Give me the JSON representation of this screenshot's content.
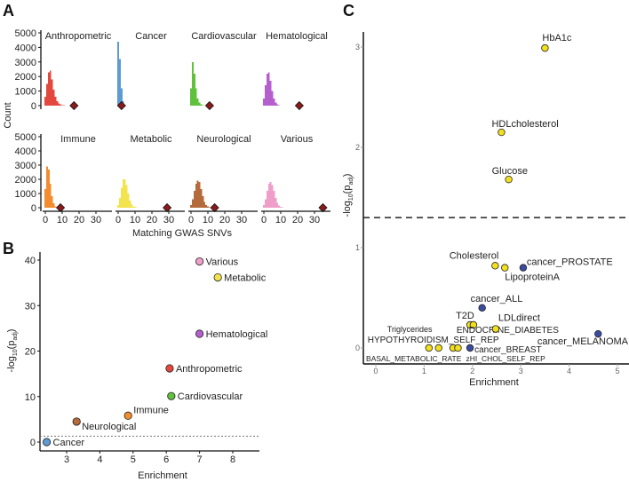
{
  "panel_labels": {
    "a": "A",
    "b": "B",
    "c": "C"
  },
  "colors": {
    "Anthropometric": "#e3483e",
    "Cancer": "#5f9bd3",
    "Cardiovascular": "#5fc13c",
    "Hematological": "#b55fcf",
    "Immune": "#f28c2e",
    "Metabolic": "#f3e34f",
    "Neurological": "#b46a3b",
    "Various": "#ef9ec9",
    "observed": "#8b1a1a",
    "c_yellow": "#f2e01f",
    "c_blue": "#3b4ba0"
  },
  "chart_data": [
    {
      "type": "bar",
      "title": "",
      "xlabel": "Matching GWAS SNVs",
      "ylabel": "Count",
      "xticks": [
        "0",
        "10",
        "20",
        "30"
      ],
      "yticks": [
        "0",
        "1000",
        "2000",
        "3000",
        "4000",
        "5000"
      ],
      "xlim": [
        -1,
        37
      ],
      "ylim": [
        0,
        5000
      ],
      "bin_width": 1,
      "facets": [
        {
          "name": "Anthropometric",
          "counts": [
            600,
            1500,
            2300,
            2400,
            1800,
            1100,
            600,
            300,
            150,
            80,
            40,
            20,
            10,
            5
          ],
          "observed": 17
        },
        {
          "name": "Cancer",
          "counts": [
            4400,
            3200,
            1200,
            300,
            60,
            10
          ],
          "observed": 2
        },
        {
          "name": "Cardiovascular",
          "counts": [
            1200,
            3000,
            2200,
            1200,
            500,
            200,
            80,
            30,
            10
          ],
          "observed": 11
        },
        {
          "name": "Hematological",
          "counts": [
            500,
            1400,
            2200,
            2300,
            1700,
            1000,
            500,
            200,
            80,
            30,
            10
          ],
          "observed": 21
        },
        {
          "name": "Immune",
          "counts": [
            1300,
            2900,
            2700,
            1700,
            800,
            300,
            100,
            30,
            10
          ],
          "observed": 9
        },
        {
          "name": "Metabolic",
          "counts": [
            200,
            700,
            1400,
            2000,
            2000,
            1600,
            1000,
            500,
            250,
            100,
            50,
            20,
            10
          ],
          "observed": 29
        },
        {
          "name": "Neurological",
          "counts": [
            200,
            600,
            1200,
            1700,
            1900,
            1800,
            1300,
            800,
            400,
            200,
            80,
            30,
            10
          ],
          "observed": 14
        },
        {
          "name": "Various",
          "counts": [
            200,
            600,
            1200,
            1700,
            1800,
            1600,
            1200,
            700,
            350,
            150,
            60,
            20,
            10
          ],
          "observed": 35
        }
      ]
    },
    {
      "type": "scatter",
      "title": "",
      "xlabel": "Enrichment",
      "ylabel": "-log10(p_adj)",
      "ylabel_parts": {
        "pre": "-log",
        "sub1": "10",
        "mid": "(p",
        "sub2": "adj",
        "post": ")"
      },
      "xlim": [
        2.2,
        8.8
      ],
      "ylim": [
        -1.5,
        42
      ],
      "xticks": [
        "3",
        "4",
        "5",
        "6",
        "7",
        "8"
      ],
      "yticks": [
        "0",
        "10",
        "20",
        "30",
        "40"
      ],
      "threshold": 1.3,
      "points": [
        {
          "label": "Various",
          "x": 7.0,
          "y": 39.7
        },
        {
          "label": "Metabolic",
          "x": 7.55,
          "y": 36.2
        },
        {
          "label": "Hematological",
          "x": 7.0,
          "y": 23.8
        },
        {
          "label": "Anthropometric",
          "x": 6.1,
          "y": 16.2
        },
        {
          "label": "Cardiovascular",
          "x": 6.15,
          "y": 10.1
        },
        {
          "label": "Immune",
          "x": 4.85,
          "y": 5.8
        },
        {
          "label": "Neurological",
          "x": 3.3,
          "y": 4.5
        },
        {
          "label": "Cancer",
          "x": 2.4,
          "y": 0.0
        }
      ]
    },
    {
      "type": "scatter",
      "title": "",
      "xlabel": "Enrichment",
      "ylabel": "-log10(p_adj)",
      "ylabel_parts": {
        "pre": "-log",
        "sub1": "10",
        "mid": "(p",
        "sub2": "adj",
        "post": ")"
      },
      "xlim": [
        -0.25,
        5.2
      ],
      "ylim": [
        -0.15,
        3.12
      ],
      "xticks": [
        "0",
        "1",
        "2",
        "3",
        "4",
        "5"
      ],
      "yticks": [
        "0",
        "1",
        "2",
        "3"
      ],
      "threshold": 1.3,
      "series": [
        "metabolic",
        "cancer"
      ],
      "points": [
        {
          "label": "HbA1c",
          "x": 3.5,
          "y": 2.99,
          "group": "metabolic"
        },
        {
          "label": "HDLcholesterol",
          "x": 2.6,
          "y": 2.15,
          "group": "metabolic"
        },
        {
          "label": "Glucose",
          "x": 2.75,
          "y": 1.68,
          "group": "metabolic"
        },
        {
          "label": "Cholesterol",
          "x": 2.47,
          "y": 0.82,
          "group": "metabolic"
        },
        {
          "label": "LipoproteinA",
          "x": 2.67,
          "y": 0.8,
          "group": "metabolic"
        },
        {
          "label": "cancer_PROSTATE",
          "x": 3.05,
          "y": 0.8,
          "group": "cancer"
        },
        {
          "label": "cancer_ALL",
          "x": 2.2,
          "y": 0.4,
          "group": "cancer"
        },
        {
          "label": "T2D",
          "x": 1.95,
          "y": 0.23,
          "group": "metabolic"
        },
        {
          "label": "ENDOCRINE_DIABETES",
          "x": 2.02,
          "y": 0.23,
          "group": "metabolic"
        },
        {
          "label": "LDLdirect",
          "x": 2.48,
          "y": 0.19,
          "group": "metabolic"
        },
        {
          "label": "cancer_MELANOMA",
          "x": 4.6,
          "y": 0.14,
          "group": "cancer"
        },
        {
          "label": "Triglycerides",
          "x": 1.1,
          "y": 0.0,
          "group": "metabolic"
        },
        {
          "label": "HYPOTHYROIDISM_SELF_REP",
          "x": 1.3,
          "y": 0.0,
          "group": "metabolic"
        },
        {
          "label": "BASAL_METABOLIC_RATE",
          "x": 1.6,
          "y": 0.0,
          "group": "metabolic"
        },
        {
          "label": "zHI_CHOL_SELF_REP",
          "x": 1.7,
          "y": 0.0,
          "group": "metabolic"
        },
        {
          "label": "cancer_BREAST",
          "x": 1.95,
          "y": 0.0,
          "group": "cancer"
        }
      ]
    }
  ]
}
